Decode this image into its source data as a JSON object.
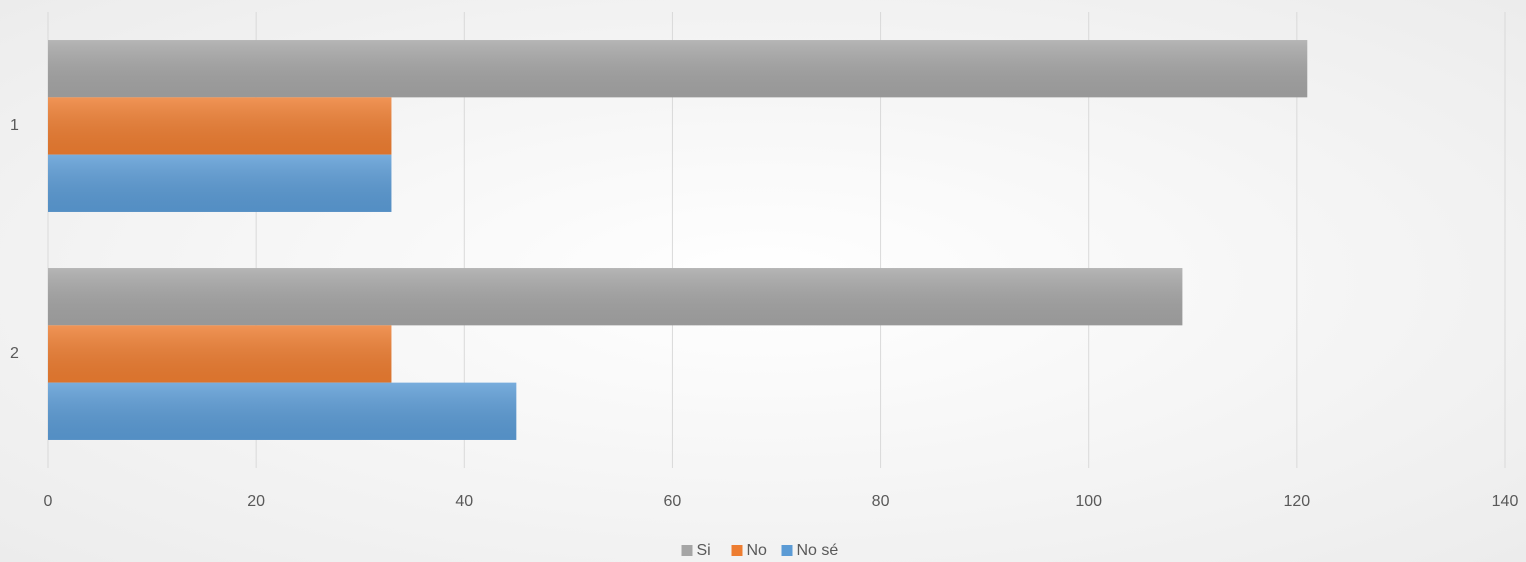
{
  "chart_data": {
    "type": "bar",
    "orientation": "horizontal",
    "categories": [
      "1",
      "2"
    ],
    "series": [
      {
        "name": "Si",
        "color": "#a5a5a5",
        "values": [
          121,
          109
        ]
      },
      {
        "name": "No",
        "color": "#ed7d31",
        "values": [
          33,
          33
        ]
      },
      {
        "name": "No sé",
        "color": "#5b9bd5",
        "values": [
          33,
          45
        ]
      }
    ],
    "xlim": [
      0,
      140
    ],
    "xticks": [
      0,
      20,
      40,
      60,
      80,
      100,
      120,
      140
    ],
    "grid": true,
    "legend": "bottom"
  }
}
